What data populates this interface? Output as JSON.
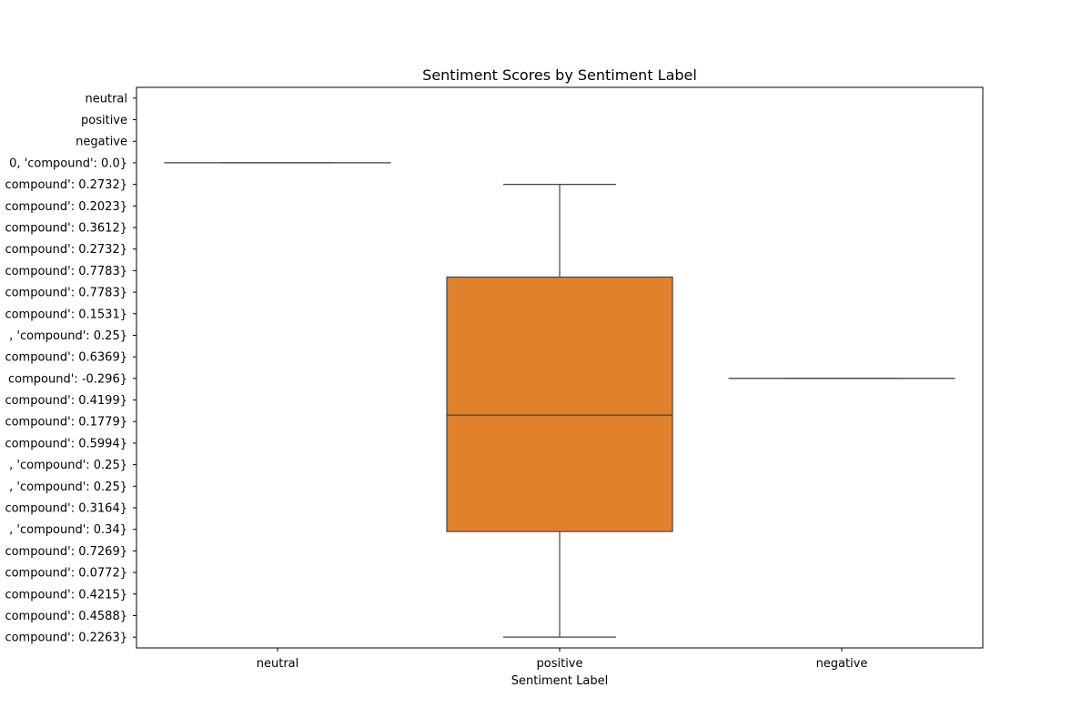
{
  "chart_data": {
    "type": "box",
    "title": "Sentiment Scores by Sentiment Label",
    "xlabel": "Sentiment Label",
    "ylabel": "",
    "categories": [
      "neutral",
      "positive",
      "negative"
    ],
    "y_categories": [
      "neutral",
      "positive",
      "negative",
      "0, 'compound': 0.0}",
      "compound': 0.2732}",
      "compound': 0.2023}",
      "compound': 0.3612}",
      "compound': 0.2732}",
      "compound': 0.7783}",
      "compound': 0.7783}",
      "compound': 0.1531}",
      ", 'compound': 0.25}",
      "compound': 0.6369}",
      "compound': -0.296}",
      "compound': 0.4199}",
      "compound': 0.1779}",
      "compound': 0.5994}",
      ", 'compound': 0.25}",
      ", 'compound': 0.25}",
      "compound': 0.3164}",
      ", 'compound': 0.34}",
      "compound': 0.7269}",
      "compound': 0.0772}",
      "compound': 0.4215}",
      "compound': 0.4588}",
      "compound': 0.2263}"
    ],
    "ylim": [
      -0.5,
      25.5
    ],
    "boxes": [
      {
        "category": "neutral",
        "whisker_low": 3,
        "q1": 3,
        "median": 3,
        "q3": 3,
        "whisker_high": 3,
        "color": "#1f77b4"
      },
      {
        "category": "positive",
        "whisker_low": 4,
        "q1": 8.3,
        "median": 14.7,
        "q3": 20.1,
        "whisker_high": 25,
        "color": "#e1812c"
      },
      {
        "category": "negative",
        "whisker_low": 13,
        "q1": 13,
        "median": 13,
        "q3": 13,
        "whisker_high": 13,
        "color": "#3a923a"
      }
    ],
    "grid": false,
    "legend": "none"
  }
}
